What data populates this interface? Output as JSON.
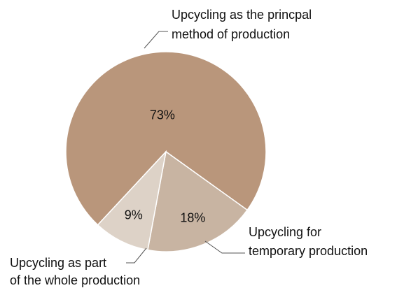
{
  "chart_data": {
    "type": "pie",
    "categories": [
      [
        "Upcycling as the princpal",
        "method of production"
      ],
      [
        "Upcycling as part",
        "of the whole production"
      ],
      [
        "Upcycling for",
        "temporary production"
      ]
    ],
    "values": [
      73,
      18,
      9
    ],
    "value_labels": [
      "73%",
      "18%",
      "9%"
    ],
    "colors": [
      "#b9967b",
      "#c8b4a2",
      "#ddd2c7"
    ]
  }
}
